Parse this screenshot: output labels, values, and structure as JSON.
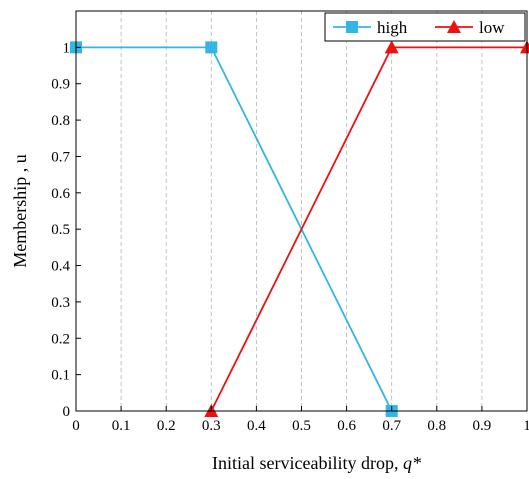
{
  "chart_data": {
    "type": "line",
    "xlabel": "Initial serviceability drop, ",
    "xlabel_var": "q*",
    "ylabel": "Membership , u",
    "xlim": [
      0,
      1
    ],
    "ylim": [
      0,
      1.1
    ],
    "x_ticks": [
      "0",
      "0.1",
      "0.2",
      "0.3",
      "0.4",
      "0.5",
      "0.6",
      "0.7",
      "0.8",
      "0.9",
      "1"
    ],
    "y_ticks": [
      "0",
      "0.1",
      "0.2",
      "0.3",
      "0.4",
      "0.5",
      "0.6",
      "0.7",
      "0.8",
      "0.9",
      "1"
    ],
    "grid": "vertical dashed",
    "legend_position": "top-right",
    "series": [
      {
        "name": "high",
        "color": "#33b5e5",
        "marker": "square",
        "x": [
          0,
          0.3,
          0.7
        ],
        "y": [
          1,
          1,
          0
        ]
      },
      {
        "name": "low",
        "color": "#ee1111",
        "marker": "triangle",
        "x": [
          0.3,
          0.7,
          1
        ],
        "y": [
          0,
          1,
          1
        ]
      }
    ]
  }
}
